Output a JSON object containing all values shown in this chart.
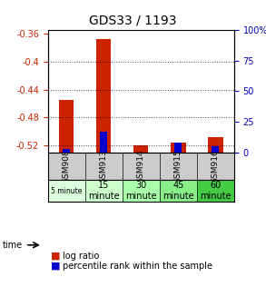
{
  "title": "GDS33 / 1193",
  "samples": [
    "GSM908",
    "GSM913",
    "GSM914",
    "GSM915",
    "GSM916"
  ],
  "time_labels": [
    "5 minute",
    "15\nminute",
    "30\nminute",
    "45\nminute",
    "60\nminute"
  ],
  "time_small": [
    true,
    false,
    false,
    false,
    false
  ],
  "log_ratios": [
    -0.455,
    -0.368,
    -0.519,
    -0.516,
    -0.508
  ],
  "percentile_ranks": [
    3,
    17,
    0.5,
    8,
    5
  ],
  "ylim_left": [
    -0.53,
    -0.355
  ],
  "ylim_right": [
    0,
    100
  ],
  "yticks_left": [
    -0.52,
    -0.48,
    -0.44,
    -0.4,
    -0.36
  ],
  "yticks_right": [
    0,
    25,
    50,
    75,
    100
  ],
  "bar_color_red": "#cc2200",
  "bar_color_blue": "#0000cc",
  "left_axis_color": "#cc2200",
  "right_axis_color": "#0000bb",
  "bg_color": "#ffffff",
  "time_colors": [
    "#ddffdd",
    "#ccffcc",
    "#aaffaa",
    "#88ee88",
    "#44cc44"
  ],
  "sample_bg": "#cccccc"
}
